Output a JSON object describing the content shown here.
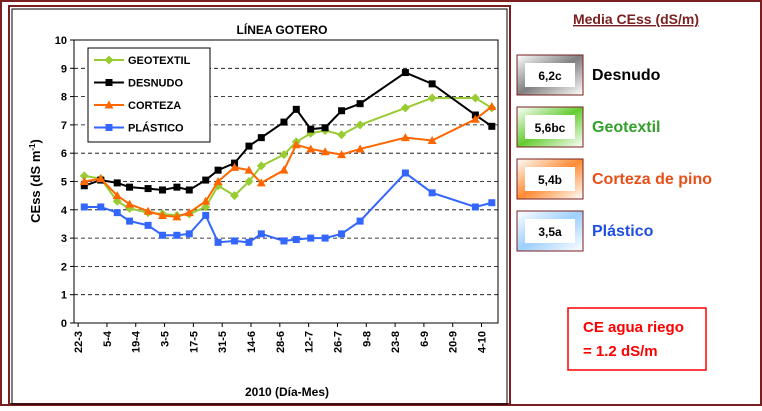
{
  "chart_data": {
    "type": "line",
    "title": "LÍNEA GOTERO",
    "y_label": {
      "text": "CEss (dS m",
      "superscript": "-1",
      "suffix": ")"
    },
    "x_label": "2010 (Día-Mes)",
    "x": [
      84,
      92,
      100,
      106,
      115,
      122,
      129,
      135,
      143,
      149,
      157,
      164,
      170,
      181,
      187,
      194,
      201,
      209,
      218,
      240,
      253,
      274,
      282
    ],
    "xlim": [
      79,
      285
    ],
    "xticks": [
      {
        "value": 81,
        "label": "22-3"
      },
      {
        "value": 95,
        "label": "5-4"
      },
      {
        "value": 109,
        "label": "19-4"
      },
      {
        "value": 123,
        "label": "3-5"
      },
      {
        "value": 137,
        "label": "17-5"
      },
      {
        "value": 151,
        "label": "31-5"
      },
      {
        "value": 165,
        "label": "14-6"
      },
      {
        "value": 179,
        "label": "28-6"
      },
      {
        "value": 193,
        "label": "12-7"
      },
      {
        "value": 207,
        "label": "26-7"
      },
      {
        "value": 221,
        "label": "9-8"
      },
      {
        "value": 235,
        "label": "23-8"
      },
      {
        "value": 249,
        "label": "6-9"
      },
      {
        "value": 263,
        "label": "20-9"
      },
      {
        "value": 277,
        "label": "4-10"
      }
    ],
    "ylim": [
      0,
      10
    ],
    "yticks": [
      0,
      1,
      2,
      3,
      4,
      5,
      6,
      7,
      8,
      9,
      10
    ],
    "grid": true,
    "series": [
      {
        "name": "GEOTEXTIL",
        "color": "#99cc33",
        "marker": "diamond",
        "values": [
          5.2,
          5.1,
          4.3,
          4.05,
          3.9,
          3.85,
          3.8,
          3.85,
          4.1,
          4.85,
          4.5,
          5.0,
          5.55,
          5.95,
          6.4,
          6.7,
          6.8,
          6.65,
          7.0,
          7.6,
          7.95,
          7.95,
          7.6
        ]
      },
      {
        "name": "DESNUDO",
        "color": "#000000",
        "marker": "square",
        "values": [
          4.85,
          5.05,
          4.95,
          4.8,
          4.75,
          4.7,
          4.8,
          4.7,
          5.05,
          5.4,
          5.65,
          6.25,
          6.55,
          7.1,
          7.55,
          6.85,
          6.9,
          7.5,
          7.75,
          8.85,
          8.45,
          7.35,
          6.95
        ]
      },
      {
        "name": "CORTEZA",
        "color": "#ff6600",
        "marker": "triangle",
        "values": [
          5.0,
          5.1,
          4.5,
          4.2,
          3.95,
          3.8,
          3.75,
          3.9,
          4.3,
          5.0,
          5.5,
          5.4,
          4.95,
          5.4,
          6.3,
          6.15,
          6.05,
          5.95,
          6.15,
          6.55,
          6.45,
          7.2,
          7.65
        ]
      },
      {
        "name": "PLÁSTICO",
        "color": "#3366ff",
        "marker": "square",
        "values": [
          4.1,
          4.1,
          3.9,
          3.6,
          3.45,
          3.1,
          3.1,
          3.15,
          3.8,
          2.85,
          2.9,
          2.85,
          3.15,
          2.9,
          2.95,
          3.0,
          3.0,
          3.15,
          3.6,
          5.3,
          4.6,
          4.1,
          4.25
        ]
      }
    ]
  },
  "panel": {
    "title": "Media CEss (dS/m)",
    "items": [
      {
        "label": "6,2c",
        "name": "Desnudo",
        "color": "#000000",
        "box": "#808080"
      },
      {
        "label": "5,6bc",
        "name": "Geotextil",
        "color": "#33a02c",
        "box": "#66cc33"
      },
      {
        "label": "5,4b",
        "name": "Corteza de pino",
        "color": "#e8501a",
        "box": "#ff8c33"
      },
      {
        "label": "3,5a",
        "name": "Plástico",
        "color": "#1f4fe0",
        "box": "#9fd0ff"
      }
    ],
    "note": [
      "CE agua riego",
      "= 1.2 dS/m"
    ],
    "note_color": "#ff0000"
  }
}
